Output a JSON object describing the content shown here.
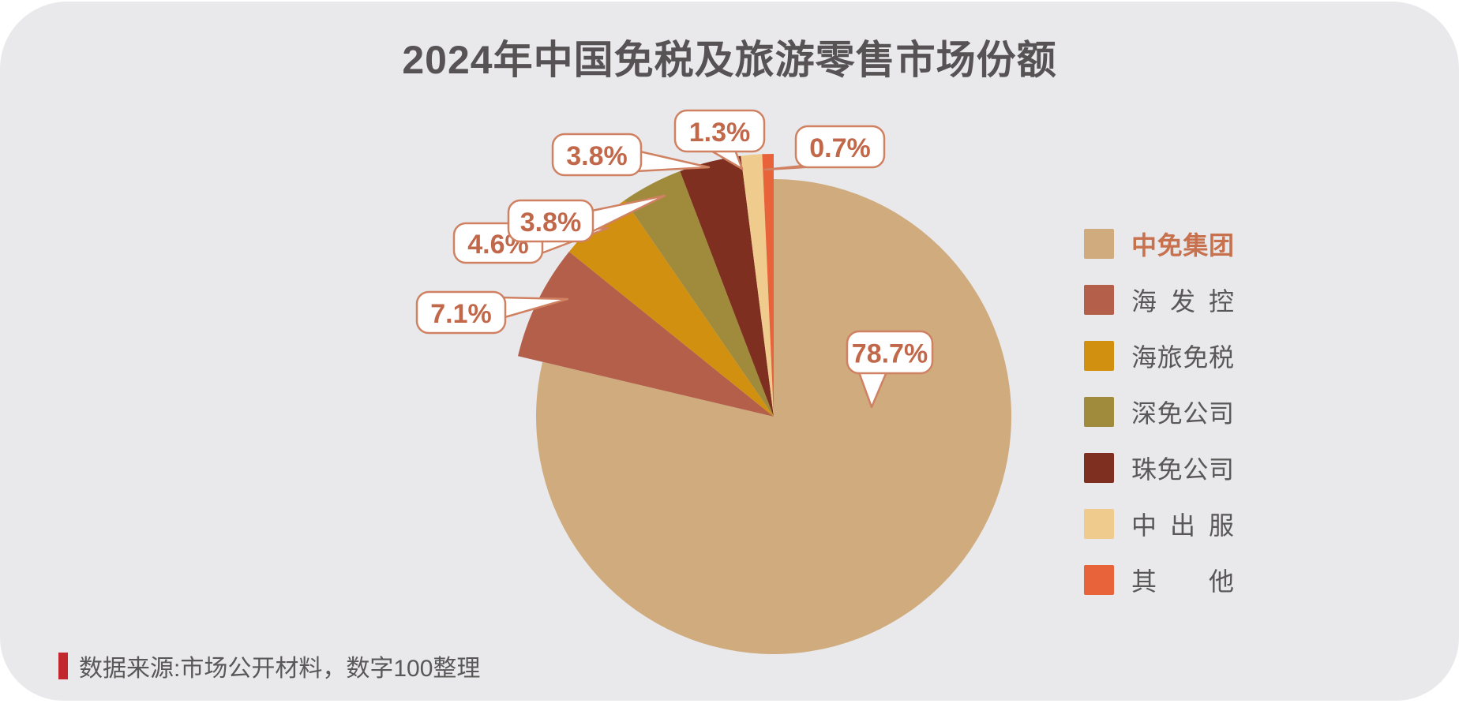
{
  "title": "2024年中国免税及旅游零售市场份额",
  "source": {
    "text": "数据来源:市场公开材料，数字100整理"
  },
  "colors": {
    "panel_background": "#E9E9EB",
    "page_background": "#FFFFFF",
    "title_text": "#575355",
    "legend_text": "#595757",
    "legend_highlight_text": "#C7714E",
    "callout_border": "#CF8162",
    "callout_text": "#C2684A",
    "callout_fill": "#FFFFFF",
    "source_bar": "#C1272D"
  },
  "chart_data": {
    "type": "pie",
    "title": "2024年中国免税及旅游零售市场份额",
    "unit": "%",
    "legend_position": "right",
    "start_angle_deg": 0,
    "clockwise": true,
    "series": [
      {
        "name": "中免集团",
        "value": 78.7,
        "label": "78.7%",
        "color": "#CFAB7E",
        "highlighted_in_legend": true
      },
      {
        "name": "海发控",
        "value": 7.1,
        "label": "7.1%",
        "color": "#B45F4A",
        "highlighted_in_legend": false
      },
      {
        "name": "海旅免税",
        "value": 4.6,
        "label": "4.6%",
        "color": "#D1900F",
        "highlighted_in_legend": false
      },
      {
        "name": "深免公司",
        "value": 3.8,
        "label": "3.8%",
        "color": "#A08B3C",
        "highlighted_in_legend": false
      },
      {
        "name": "珠免公司",
        "value": 3.8,
        "label": "3.8%",
        "color": "#7E2F1F",
        "highlighted_in_legend": false
      },
      {
        "name": "中出服",
        "value": 1.3,
        "label": "1.3%",
        "color": "#EFCB8D",
        "highlighted_in_legend": false
      },
      {
        "name": "其他",
        "value": 0.7,
        "label": "0.7%",
        "color": "#E8633A",
        "highlighted_in_legend": false
      }
    ]
  }
}
